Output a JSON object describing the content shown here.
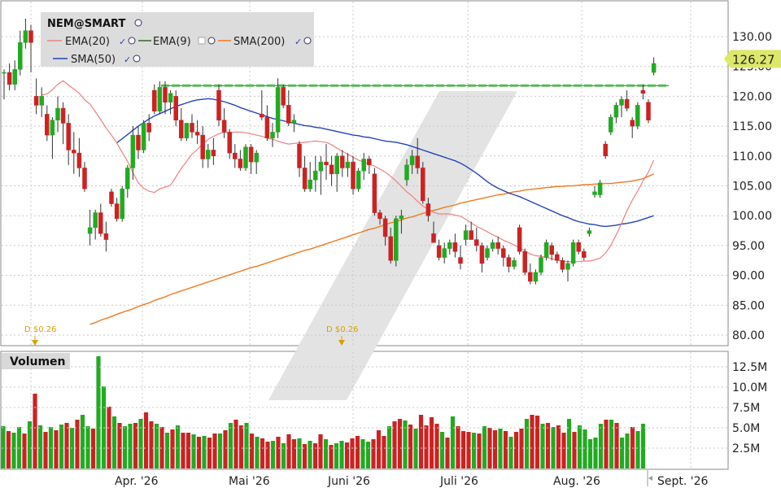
{
  "legend": {
    "symbol": "NEM@SMART",
    "ema20": "EMA(20)",
    "ema9": "EMA(9)",
    "sma200": "SMA(200)",
    "sma50": "SMA(50)"
  },
  "volume_title": "Volumen",
  "last_price_label": "126.27",
  "dividends": [
    "D $0.26",
    "D $0.26"
  ],
  "colors": {
    "up": "#22aa22",
    "down": "#cc2222",
    "ema20": "#f08080",
    "ema9": "#2e6b1f",
    "sma200": "#f07a20",
    "sma50": "#2244bb",
    "resistance": "#44bb44",
    "last_price_bg": "#dde86a"
  },
  "chart_data": [
    {
      "type": "candlestick",
      "title": "NEM@SMART",
      "ylim": [
        78,
        134
      ],
      "y_ticks": [
        "130.00",
        "125.00",
        "120.00",
        "115.00",
        "110.00",
        "105.00",
        "100.00",
        "95.00",
        "90.00",
        "85.00",
        "80.00"
      ],
      "y_tick_values": [
        130,
        125,
        120,
        115,
        110,
        105,
        100,
        95,
        90,
        85,
        80
      ],
      "x_tick_labels": [
        "Apr. '26",
        "Mai '26",
        "Juni '26",
        "Juli '26",
        "Aug. '26",
        "Sept. '26"
      ],
      "resistance_level": 121.8,
      "last_price": 126.27,
      "ohlc": [
        [
          124,
          124.5,
          119.5,
          124
        ],
        [
          124,
          125.5,
          121,
          122
        ],
        [
          122,
          126,
          121,
          124.5
        ],
        [
          124.5,
          131,
          123.5,
          129
        ],
        [
          129,
          133,
          128,
          131
        ],
        [
          131,
          132,
          124,
          129
        ],
        [
          120,
          123,
          117,
          118.5
        ],
        [
          118.5,
          121.5,
          116.5,
          120
        ],
        [
          117,
          118.5,
          112.5,
          113.5
        ],
        [
          113.5,
          116.5,
          109.5,
          116
        ],
        [
          116,
          120,
          114,
          118
        ],
        [
          118,
          119,
          112,
          115.5
        ],
        [
          115.5,
          117,
          108.5,
          111
        ],
        [
          111,
          114,
          107,
          110.5
        ],
        [
          110.5,
          113,
          106.5,
          108
        ],
        [
          108,
          109,
          104,
          104.5
        ],
        [
          97,
          101,
          95,
          98
        ],
        [
          98,
          101,
          96,
          100.5
        ],
        [
          100.5,
          102,
          96.5,
          97
        ],
        [
          97,
          99,
          94,
          96
        ],
        [
          104,
          104.5,
          101.5,
          102
        ],
        [
          102,
          103,
          99,
          99.5
        ],
        [
          99.5,
          105,
          99,
          104.5
        ],
        [
          104.5,
          108.5,
          103,
          108
        ],
        [
          108,
          115,
          106,
          113.5
        ],
        [
          113.5,
          115,
          109.5,
          111
        ],
        [
          111,
          116,
          110.5,
          115.5
        ],
        [
          115.5,
          117,
          112.5,
          114
        ],
        [
          121,
          122,
          117,
          117.5
        ],
        [
          117.5,
          122.5,
          117,
          121.5
        ],
        [
          121.5,
          122.5,
          117,
          119
        ],
        [
          119,
          121,
          117,
          120.5
        ],
        [
          120,
          121,
          115,
          116
        ],
        [
          116,
          118,
          112.5,
          113
        ],
        [
          113,
          115.5,
          112.5,
          115.5
        ],
        [
          115.5,
          117,
          113,
          114
        ],
        [
          114,
          116,
          112,
          113.5
        ],
        [
          113.5,
          115,
          108,
          109.5
        ],
        [
          109.5,
          112,
          108,
          111
        ],
        [
          111,
          113,
          108.5,
          110
        ],
        [
          121,
          122,
          115,
          116
        ],
        [
          116,
          118,
          113,
          114
        ],
        [
          114,
          114.5,
          109.5,
          110.5
        ],
        [
          110.5,
          112,
          108,
          109.5
        ],
        [
          109.5,
          111,
          107.5,
          108
        ],
        [
          108,
          112,
          107.5,
          111.5
        ],
        [
          111.5,
          112,
          107,
          109
        ],
        [
          109,
          111,
          107,
          110.5
        ],
        [
          117,
          121,
          116,
          116.5
        ],
        [
          116.5,
          118.5,
          112.5,
          113
        ],
        [
          113,
          115.5,
          111.5,
          114
        ],
        [
          114,
          123,
          113,
          121.5
        ],
        [
          121.5,
          122,
          118,
          118.5
        ],
        [
          118.5,
          121,
          115,
          115.5
        ],
        [
          115.5,
          117,
          114,
          116
        ],
        [
          112,
          112.5,
          106.5,
          108
        ],
        [
          108,
          110,
          104,
          104.5
        ],
        [
          104.5,
          109,
          104,
          106
        ],
        [
          106,
          110,
          104,
          107.5
        ],
        [
          107.5,
          110,
          103.5,
          109
        ],
        [
          109,
          112,
          106,
          108.5
        ],
        [
          108.5,
          110,
          105,
          107
        ],
        [
          107,
          110.5,
          104,
          110
        ],
        [
          110,
          111,
          106.5,
          108
        ],
        [
          108,
          110.5,
          106.5,
          109
        ],
        [
          109,
          110,
          103.5,
          104.5
        ],
        [
          104.5,
          108,
          104,
          107.5
        ],
        [
          107.5,
          110.5,
          106,
          109.5
        ],
        [
          109.5,
          110,
          107,
          108.5
        ],
        [
          107,
          108,
          100,
          100.5
        ],
        [
          100.5,
          101,
          98.5,
          99.5
        ],
        [
          99.5,
          100,
          95,
          96.5
        ],
        [
          96.5,
          98,
          92,
          92.5
        ],
        [
          92.5,
          100,
          91.5,
          99.5
        ],
        [
          99.5,
          101,
          97,
          100
        ],
        [
          106,
          109.5,
          105,
          108.5
        ],
        [
          108.5,
          111,
          107,
          110
        ],
        [
          110,
          113,
          107,
          108
        ],
        [
          108,
          109,
          102,
          102.5
        ],
        [
          102,
          103,
          99,
          100
        ],
        [
          97,
          99,
          95.5,
          95.5
        ],
        [
          95,
          96,
          92.5,
          93
        ],
        [
          93,
          95.5,
          92,
          94.5
        ],
        [
          94.5,
          96,
          93.5,
          95.5
        ],
        [
          95.5,
          97,
          93,
          94
        ],
        [
          93,
          95,
          91,
          92
        ],
        [
          96,
          98.5,
          95,
          97.5
        ],
        [
          97.5,
          99,
          96,
          96
        ],
        [
          96,
          98,
          94,
          95
        ],
        [
          95,
          95.5,
          90.5,
          92
        ],
        [
          93,
          95,
          92.5,
          94.5
        ],
        [
          94.5,
          96,
          94,
          95.5
        ],
        [
          95.5,
          96.5,
          93.5,
          94.5
        ],
        [
          94.5,
          95,
          91.5,
          93
        ],
        [
          93,
          93.5,
          90.5,
          91.5
        ],
        [
          91.5,
          93,
          91,
          92.5
        ],
        [
          98,
          98.5,
          93.5,
          94
        ],
        [
          94,
          94.5,
          90,
          90.5
        ],
        [
          90.5,
          92,
          88.5,
          89
        ],
        [
          89,
          91,
          88.5,
          90.5
        ],
        [
          90.5,
          93.5,
          90,
          93
        ],
        [
          93,
          96,
          92.5,
          95.5
        ],
        [
          95,
          95.5,
          92.5,
          93.5
        ],
        [
          93.5,
          94,
          92,
          92.5
        ],
        [
          92.5,
          93,
          90.5,
          91
        ],
        [
          91,
          92.5,
          89,
          92
        ],
        [
          92,
          96,
          91.5,
          95.5
        ],
        [
          95.5,
          96,
          93.5,
          94
        ],
        [
          94,
          94.5,
          92.5,
          93
        ],
        [
          97,
          98,
          96.5,
          97.5
        ],
        [
          103.5,
          105,
          103,
          104
        ],
        [
          103.5,
          106,
          103,
          105.5
        ],
        [
          112,
          112.5,
          109.5,
          110
        ],
        [
          114,
          117,
          113.5,
          116.5
        ],
        [
          116.5,
          119,
          115.5,
          118.5
        ],
        [
          118.5,
          120,
          116.5,
          119.5
        ],
        [
          119.5,
          121,
          117.5,
          118
        ],
        [
          116,
          116.5,
          113,
          115
        ],
        [
          115,
          119,
          114.5,
          118.5
        ],
        [
          121,
          122,
          119.5,
          120.5
        ],
        [
          119,
          119.5,
          115.5,
          116
        ],
        [
          124,
          126.5,
          123.5,
          125.5
        ]
      ],
      "ema20": [
        120.2,
        120.4,
        121.1,
        122,
        122.6,
        121.9,
        121.2,
        120.5,
        119.4,
        118.7,
        117.4,
        116.1,
        114.7,
        113.5,
        112.2,
        110.6,
        109.1,
        107.2,
        105.5,
        104.6,
        104.1,
        103.9,
        104.5,
        104.8,
        105.1,
        106.5,
        107.9,
        109.1,
        110.3,
        111.1,
        112,
        112.8,
        113.3,
        113.7,
        114,
        113.9,
        114,
        114,
        113.9,
        113.7,
        113.5,
        113.3,
        113,
        112.8,
        112.5,
        112.2,
        112,
        112.1,
        112.2,
        112.3,
        112.4,
        112.5,
        112.4,
        112.3,
        111.9,
        111.3,
        110.8,
        110.3,
        109.8,
        109.3,
        109,
        108.6,
        108.3,
        107.8,
        107.3,
        106.6,
        105.8,
        104.9,
        104,
        103.3,
        102.4,
        101.6,
        101.1,
        100.6,
        100.3,
        100.3,
        100.3,
        100.1,
        99.9,
        99.4,
        98.8,
        98.2,
        97.8,
        97.3,
        96.8,
        96.4,
        95.9,
        95.5,
        95.1,
        94.6,
        94.1,
        93.6,
        93.3,
        93.2,
        93,
        92.8,
        92.6,
        92.4,
        92.3,
        92.3,
        92.3,
        92.4,
        92.4,
        92.6,
        92.9,
        93.7,
        95,
        96.8,
        98.7,
        100.8,
        102.6,
        104.1,
        105.8,
        107.3,
        109.3
      ],
      "sma50": [
        112.2,
        112.9,
        113.6,
        114.3,
        115,
        115.6,
        116.2,
        116.7,
        117.1,
        117.5,
        117.9,
        118.3,
        118.6,
        118.9,
        119.2,
        119.4,
        119.5,
        119.6,
        119.5,
        119.3,
        119.1,
        118.8,
        118.5,
        118.1,
        117.8,
        117.5,
        117.2,
        116.9,
        116.6,
        116.3,
        116.1,
        115.9,
        115.7,
        115.5,
        115.3,
        115.1,
        115,
        114.8,
        114.7,
        114.5,
        114.3,
        114.1,
        113.9,
        113.7,
        113.5,
        113.4,
        113.2,
        113.1,
        112.9,
        112.7,
        112.5,
        112.4,
        112.3,
        112.1,
        111.9,
        111.6,
        111.3,
        111,
        110.7,
        110.4,
        110.1,
        109.8,
        109.5,
        109.2,
        108.8,
        108.3,
        107.7,
        107.1,
        106.4,
        105.7,
        105.1,
        104.6,
        104.2,
        103.8,
        103.5,
        103.2,
        102.8,
        102.4,
        102,
        101.6,
        101.2,
        100.8,
        100.4,
        100,
        99.7,
        99.3,
        99,
        98.8,
        98.6,
        98.5,
        98.3,
        98.2,
        98.3,
        98.4,
        98.6,
        98.7,
        98.9,
        99.1,
        99.4,
        99.7,
        100
      ],
      "sma200": [
        81.8,
        82.1,
        82.5,
        82.8,
        83.1,
        83.5,
        83.8,
        84.1,
        84.4,
        84.8,
        85.1,
        85.4,
        85.8,
        86.1,
        86.4,
        86.8,
        87.1,
        87.4,
        87.7,
        88,
        88.3,
        88.6,
        88.9,
        89.2,
        89.5,
        89.8,
        90.1,
        90.4,
        90.7,
        91,
        91.3,
        91.5,
        91.8,
        92.1,
        92.4,
        92.7,
        93,
        93.3,
        93.6,
        93.9,
        94.2,
        94.4,
        94.7,
        95,
        95.3,
        95.6,
        95.9,
        96.2,
        96.5,
        96.8,
        97.1,
        97.4,
        97.7,
        97.9,
        98.2,
        98.5,
        98.8,
        99,
        99.3,
        99.6,
        99.8,
        100.1,
        100.4,
        100.6,
        100.9,
        101.1,
        101.4,
        101.6,
        101.8,
        102.1,
        102.3,
        102.5,
        102.7,
        102.9,
        103.1,
        103.3,
        103.5,
        103.6,
        103.8,
        104,
        104.1,
        104.3,
        104.4,
        104.5,
        104.6,
        104.7,
        104.8,
        104.9,
        104.9,
        105,
        105,
        105.1,
        105.2,
        105.2,
        105.3,
        105.3,
        105.4,
        105.4,
        105.5,
        105.6,
        105.7,
        105.8,
        106,
        106.2,
        106.6,
        107
      ]
    },
    {
      "type": "bar",
      "title": "Volumen",
      "ylim": [
        0,
        15000000
      ],
      "y_ticks": [
        "12.5M",
        "10.0M",
        "7.5M",
        "5.0M",
        "2.5M"
      ],
      "y_tick_values": [
        12500000,
        10000000,
        7500000,
        5000000,
        2500000
      ],
      "values": [
        5.2,
        4.6,
        4.4,
        5.1,
        4.3,
        5.8,
        9.2,
        5.3,
        4.5,
        5.1,
        4.7,
        5.4,
        5.6,
        5.0,
        6.0,
        6.6,
        5.2,
        4.9,
        13.8,
        10.1,
        7.6,
        6.4,
        5.6,
        5.2,
        5.5,
        5.6,
        6.1,
        6.9,
        5.8,
        5.5,
        5.1,
        4.4,
        4.8,
        5.3,
        4.4,
        4.4,
        4.2,
        3.9,
        4.0,
        3.8,
        4.3,
        4.3,
        4.7,
        5.6,
        6.0,
        5.3,
        5.6,
        4.3,
        3.9,
        3.7,
        3.3,
        3.4,
        3.9,
        3.1,
        4.2,
        3.6,
        3.7,
        3.0,
        3.4,
        3.1,
        4.2,
        3.6,
        2.9,
        3.1,
        3.4,
        3.2,
        3.7,
        4.0,
        3.6,
        3.3,
        3.6,
        4.7,
        4.0,
        5.2,
        5.8,
        6.1,
        5.9,
        5.4,
        4.9,
        6.6,
        5.3,
        6.3,
        5.5,
        4.5,
        3.8,
        6.4,
        5.2,
        4.6,
        4.5,
        4.4,
        4.3,
        5.2,
        5.0,
        4.7,
        4.9,
        4.6,
        3.9,
        4.5,
        4.9,
        6.1,
        6.6,
        6.5,
        5.5,
        5.6,
        5.1,
        5.3,
        4.4,
        6.1,
        4.5,
        5.3,
        4.8,
        3.6,
        3.8,
        5.5,
        6.0,
        6.0,
        5.6,
        3.8,
        4.3,
        5.1,
        4.6,
        5.5
      ],
      "colors": [
        "up",
        "down",
        "up",
        "up",
        "down",
        "up",
        "down",
        "up",
        "down",
        "up",
        "down",
        "up",
        "down",
        "up",
        "down",
        "up",
        "up",
        "down",
        "up",
        "up",
        "down",
        "up",
        "down",
        "up",
        "up",
        "down",
        "up",
        "down",
        "down",
        "up",
        "down",
        "up",
        "down",
        "up",
        "down",
        "down",
        "up",
        "down",
        "up",
        "down",
        "down",
        "up",
        "down",
        "up",
        "down",
        "down",
        "up",
        "down",
        "up",
        "down",
        "down",
        "up",
        "down",
        "up",
        "down",
        "down",
        "up",
        "down",
        "up",
        "down",
        "down",
        "up",
        "down",
        "up",
        "up",
        "down",
        "down",
        "down",
        "up",
        "up",
        "down",
        "down",
        "down",
        "up",
        "down",
        "down",
        "up",
        "down",
        "up",
        "down",
        "down",
        "down",
        "down",
        "up",
        "down",
        "up",
        "down",
        "down",
        "down",
        "up",
        "down",
        "up",
        "down",
        "down",
        "up",
        "down",
        "up",
        "down",
        "down",
        "up",
        "down",
        "down",
        "up",
        "down",
        "up",
        "down",
        "down",
        "up",
        "down",
        "up",
        "up",
        "up",
        "up",
        "up",
        "down",
        "up",
        "down",
        "up",
        "up",
        "down",
        "up",
        "up"
      ]
    }
  ]
}
